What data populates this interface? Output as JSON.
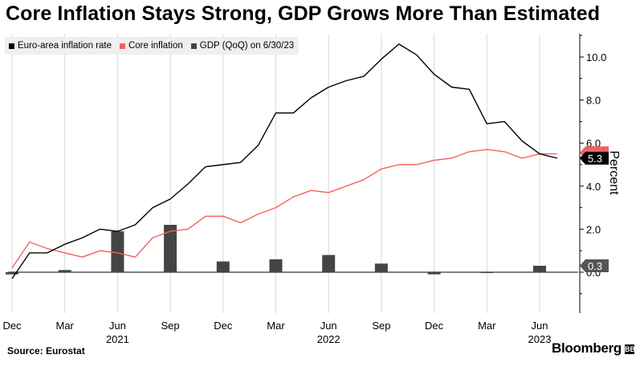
{
  "title": "Core Inflation Stays Strong, GDP Grows More Than Estimated",
  "source": "Source: Eurostat",
  "brand": "Bloomberg",
  "brand_mark": "BB",
  "colors": {
    "inflation": "#000000",
    "core": "#f1625e",
    "gdp": "#444444",
    "grid": "#d9d9d9"
  },
  "chart_data": {
    "type": "line",
    "title": "Core Inflation Stays Strong, GDP Grows More Than Estimated",
    "ylabel": "Percent",
    "ylim": [
      -2,
      11.2
    ],
    "y_ticks": [
      "0.0",
      "2.0",
      "4.0",
      "6.0",
      "8.0",
      "10.0"
    ],
    "x_tick_labels": [
      "Dec",
      "Mar",
      "Jun",
      "Sep",
      "Dec",
      "Mar",
      "Jun",
      "Sep",
      "Dec",
      "Mar",
      "Jun"
    ],
    "year_labels": [
      "2021",
      "2022",
      "2023"
    ],
    "x_start": "2020-12",
    "months": [
      "2020-12",
      "2021-01",
      "2021-02",
      "2021-03",
      "2021-04",
      "2021-05",
      "2021-06",
      "2021-07",
      "2021-08",
      "2021-09",
      "2021-10",
      "2021-11",
      "2021-12",
      "2022-01",
      "2022-02",
      "2022-03",
      "2022-04",
      "2022-05",
      "2022-06",
      "2022-07",
      "2022-08",
      "2022-09",
      "2022-10",
      "2022-11",
      "2022-12",
      "2023-01",
      "2023-02",
      "2023-03",
      "2023-04",
      "2023-05",
      "2023-06",
      "2023-07"
    ],
    "legend_position": "top-left",
    "grid": "vertical",
    "series": [
      {
        "name": "Euro-area inflation rate",
        "type": "line",
        "values": [
          -0.3,
          0.9,
          0.9,
          1.3,
          1.6,
          2.0,
          1.9,
          2.2,
          3.0,
          3.4,
          4.1,
          4.9,
          5.0,
          5.1,
          5.9,
          7.4,
          7.4,
          8.1,
          8.6,
          8.9,
          9.1,
          9.9,
          10.6,
          10.1,
          9.2,
          8.6,
          8.5,
          6.9,
          7.0,
          6.1,
          5.5,
          5.3
        ]
      },
      {
        "name": "Core inflation",
        "type": "line",
        "values": [
          0.2,
          1.4,
          1.1,
          0.9,
          0.7,
          1.0,
          0.9,
          0.7,
          1.6,
          1.9,
          2.0,
          2.6,
          2.6,
          2.3,
          2.7,
          3.0,
          3.5,
          3.8,
          3.7,
          4.0,
          4.3,
          4.8,
          5.0,
          5.0,
          5.2,
          5.3,
          5.6,
          5.7,
          5.6,
          5.3,
          5.5,
          5.5
        ]
      },
      {
        "name": "GDP (QoQ) on 6/30/23",
        "type": "bar",
        "values": [
          -0.1,
          0.1,
          1.9,
          2.2,
          0.5,
          0.6,
          0.8,
          0.4,
          -0.1,
          0.0,
          0.3
        ],
        "x_month_index": [
          0,
          3,
          6,
          9,
          12,
          15,
          18,
          21,
          24,
          27,
          30
        ]
      }
    ],
    "end_labels": {
      "inflation": "5.3",
      "gdp": "0.3"
    }
  }
}
